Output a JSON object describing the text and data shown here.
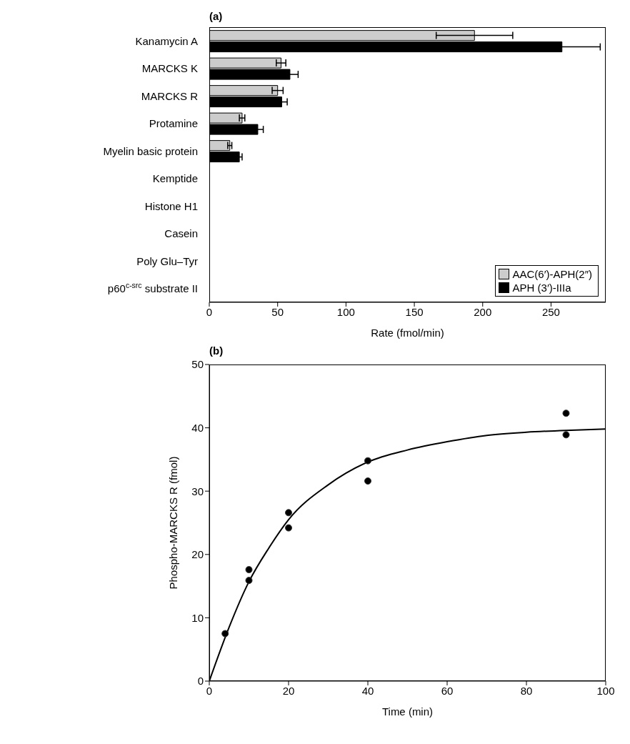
{
  "chart_data": [
    {
      "type": "bar",
      "title": "(a)",
      "orientation": "horizontal",
      "xlabel": "Rate (fmol/min)",
      "categories": [
        "Kanamycin A",
        "MARCKS K",
        "MARCKS R",
        "Protamine",
        "Myelin basic protein",
        "Kemptide",
        "Histone H1",
        "Casein",
        "Poly Glu–Tyr",
        "p60$^{c-src}$ substrate II"
      ],
      "series": [
        {
          "name": "AAC(6′)-APH(2″)",
          "color": "#cccccc",
          "values": [
            194,
            52.5,
            50,
            24,
            15,
            0,
            0,
            0,
            0,
            0
          ],
          "errors": [
            28,
            3.5,
            4,
            2,
            1.5,
            null,
            null,
            null,
            null,
            null
          ]
        },
        {
          "name": "APH (3′)-IIIa",
          "color": "#000000",
          "values": [
            258,
            59,
            53,
            35.5,
            22,
            0,
            0,
            0,
            0,
            0
          ],
          "errors": [
            28,
            6,
            4,
            4,
            2,
            null,
            null,
            null,
            null,
            null
          ]
        }
      ],
      "xlim": [
        0,
        290
      ],
      "xticks": [
        0,
        50,
        100,
        150,
        200,
        250
      ],
      "grid": false,
      "legend": "bottom right"
    },
    {
      "type": "scatter",
      "title": "(b)",
      "xlabel": "Time (min)",
      "ylabel": "Phospho-MARCKS R (fmol)",
      "series": [
        {
          "type": "scatter",
          "color": "#000000",
          "marker": "circle",
          "x": [
            4,
            10,
            10,
            20,
            20,
            40,
            40,
            90,
            90
          ],
          "values": [
            7.5,
            17.6,
            15.9,
            26.6,
            24.2,
            34.8,
            31.6,
            42.3,
            38.9
          ]
        },
        {
          "type": "line",
          "color": "#000000",
          "marker": "none",
          "x": [
            0,
            5,
            10,
            15,
            20,
            30,
            40,
            50,
            60,
            70,
            80,
            90,
            100
          ],
          "values": [
            0,
            8.5,
            15.7,
            21,
            25.5,
            31,
            34.6,
            36.5,
            37.8,
            38.8,
            39.3,
            39.6,
            39.8
          ]
        }
      ],
      "xlim": [
        0,
        100
      ],
      "xticks": [
        0,
        20,
        40,
        60,
        80,
        100
      ],
      "ylim": [
        0,
        50
      ],
      "yticks": [
        0,
        10,
        20,
        30,
        40,
        50
      ],
      "grid": false,
      "legend": false
    }
  ]
}
